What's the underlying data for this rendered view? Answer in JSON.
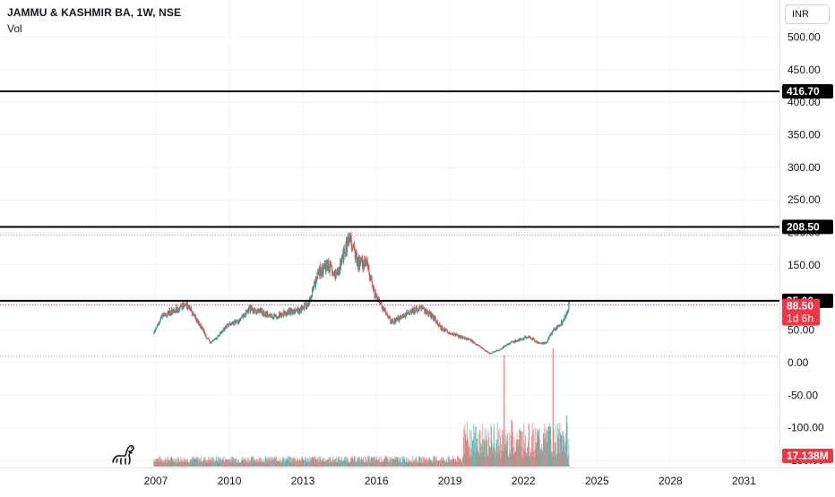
{
  "header": {
    "title": "JAMMU & KASHMIR BA, 1W, NSE",
    "volume_label": "Vol"
  },
  "currency_button": "INR",
  "colors": {
    "up": "#26a69a",
    "down": "#ef5350",
    "horizontal_line": "#000000",
    "last_price": "#f23645",
    "volume_label_bg": "#f23645"
  },
  "labels": {
    "line_416": "416.70",
    "line_208": "208.50",
    "line_95": "95.00",
    "last_price": "88.50",
    "countdown": "1d 6h",
    "volume_last": "17.138M"
  },
  "chart_data": {
    "type": "candlestick",
    "symbol": "JAMMU & KASHMIR BA",
    "interval": "1W",
    "exchange": "NSE",
    "y_ticks": [
      500,
      450,
      400,
      350,
      300,
      250,
      200,
      150,
      100,
      50,
      0,
      -50,
      -100,
      -150
    ],
    "y_tick_labels": [
      "500.00",
      "450.00",
      "400.00",
      "350.00",
      "300.00",
      "250.00",
      "200.00",
      "150.00",
      "100.00",
      "50.00",
      "0.00",
      "-50.00",
      "-100.00",
      "-150.00"
    ],
    "x_ticks": [
      "2007",
      "2010",
      "2013",
      "2016",
      "2019",
      "2022",
      "2025",
      "2028",
      "2031"
    ],
    "horizontal_lines": [
      416.7,
      208.5,
      95.0
    ],
    "last_price": 88.5,
    "dotted_levels": [
      196,
      10
    ],
    "price_path": [
      [
        2006.9,
        45
      ],
      [
        2007.2,
        70
      ],
      [
        2007.6,
        78
      ],
      [
        2008.0,
        85
      ],
      [
        2008.2,
        92
      ],
      [
        2008.5,
        75
      ],
      [
        2008.9,
        50
      ],
      [
        2009.2,
        30
      ],
      [
        2009.5,
        40
      ],
      [
        2009.9,
        58
      ],
      [
        2010.4,
        65
      ],
      [
        2010.8,
        82
      ],
      [
        2011.3,
        78
      ],
      [
        2011.8,
        70
      ],
      [
        2012.3,
        78
      ],
      [
        2012.8,
        80
      ],
      [
        2013.2,
        90
      ],
      [
        2013.6,
        138
      ],
      [
        2014.0,
        150
      ],
      [
        2014.3,
        130
      ],
      [
        2014.6,
        160
      ],
      [
        2014.9,
        195
      ],
      [
        2015.2,
        155
      ],
      [
        2015.6,
        150
      ],
      [
        2015.9,
        105
      ],
      [
        2016.3,
        80
      ],
      [
        2016.6,
        62
      ],
      [
        2017.0,
        70
      ],
      [
        2017.4,
        80
      ],
      [
        2017.8,
        83
      ],
      [
        2018.2,
        75
      ],
      [
        2018.6,
        55
      ],
      [
        2019.0,
        45
      ],
      [
        2019.4,
        40
      ],
      [
        2019.8,
        35
      ],
      [
        2020.2,
        25
      ],
      [
        2020.6,
        14
      ],
      [
        2021.0,
        20
      ],
      [
        2021.4,
        30
      ],
      [
        2021.8,
        35
      ],
      [
        2022.2,
        40
      ],
      [
        2022.6,
        30
      ],
      [
        2022.9,
        30
      ],
      [
        2023.2,
        50
      ],
      [
        2023.5,
        60
      ],
      [
        2023.7,
        72
      ],
      [
        2023.85,
        88.5
      ]
    ],
    "volume_bars": [
      [
        2020.6,
        150
      ],
      [
        2020.9,
        200
      ],
      [
        2021.2,
        830
      ],
      [
        2021.5,
        350
      ],
      [
        2021.9,
        260
      ],
      [
        2022.2,
        320
      ],
      [
        2022.5,
        180
      ],
      [
        2022.8,
        250
      ],
      [
        2023.0,
        300
      ],
      [
        2023.2,
        880
      ],
      [
        2023.5,
        250
      ],
      [
        2023.75,
        380
      ],
      [
        2023.85,
        17.138
      ]
    ],
    "volume_unit": "M",
    "last_volume": 17.138,
    "legend": "top-left",
    "grid": true
  }
}
